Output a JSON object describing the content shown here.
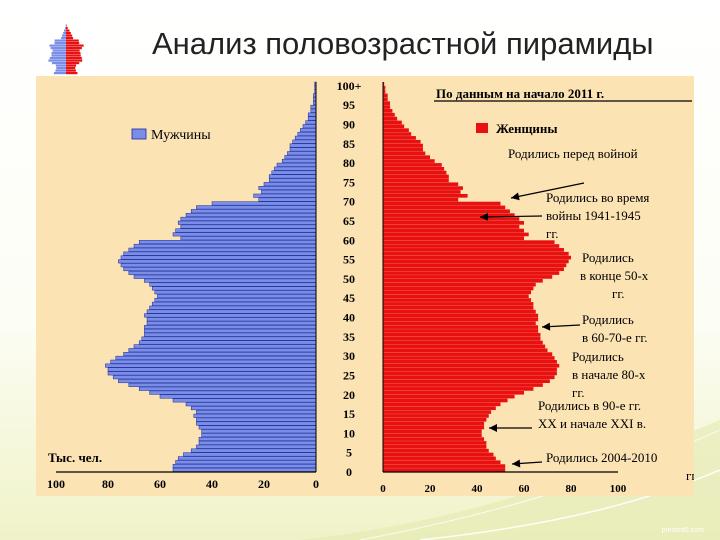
{
  "slide": {
    "title": "Анализ половозрастной пирамиды"
  },
  "colors": {
    "male": "#7a8ee8",
    "male_stroke": "#1a2a9a",
    "female": "#e81010",
    "background": "#fbe3b4"
  },
  "chart_data": {
    "type": "bar",
    "subtitle": "По данным на начало 2011 г.",
    "unit_label": "Тыс. чел.",
    "legend": [
      {
        "name": "Мужчины",
        "color": "#7a8ee8"
      },
      {
        "name": "Женщины",
        "color": "#e81010"
      }
    ],
    "age_ticks": [
      "100+",
      "95",
      "90",
      "85",
      "80",
      "75",
      "70",
      "65",
      "60",
      "55",
      "50",
      "45",
      "40",
      "35",
      "30",
      "25",
      "20",
      "15",
      "10",
      "5",
      "0"
    ],
    "male_axis_ticks": [
      "100",
      "80",
      "60",
      "40",
      "20",
      "0"
    ],
    "female_axis_ticks": [
      "0",
      "20",
      "40",
      "60",
      "80",
      "100"
    ],
    "xlim": [
      0,
      100
    ],
    "age_range": [
      0,
      100
    ],
    "series": [
      {
        "name": "Мужчины",
        "ages_from_0": [
          55,
          55,
          54,
          53,
          51,
          48,
          46,
          45,
          45,
          44,
          44,
          45,
          46,
          46,
          47,
          46,
          48,
          50,
          55,
          60,
          64,
          68,
          72,
          76,
          78,
          80,
          80,
          81,
          79,
          77,
          74,
          72,
          70,
          68,
          67,
          66,
          66,
          66,
          65,
          65,
          66,
          65,
          64,
          63,
          62,
          61,
          62,
          63,
          64,
          66,
          70,
          72,
          74,
          75,
          76,
          75,
          74,
          72,
          70,
          68,
          52,
          55,
          54,
          52,
          53,
          52,
          50,
          48,
          46,
          40,
          22,
          24,
          21,
          22,
          20,
          18,
          18,
          17,
          16,
          15,
          13,
          12,
          11,
          10,
          10,
          9,
          8,
          7,
          6,
          5,
          4,
          3,
          3,
          2,
          2,
          1,
          1,
          1,
          0.5,
          0.5,
          0.5
        ]
      },
      {
        "name": "Женщины",
        "ages_from_0": [
          52,
          52,
          50,
          48,
          47,
          45,
          44,
          44,
          43,
          42,
          42,
          43,
          43,
          44,
          45,
          46,
          48,
          50,
          53,
          56,
          60,
          64,
          68,
          71,
          73,
          74,
          74,
          75,
          74,
          73,
          72,
          70,
          69,
          68,
          67,
          67,
          66,
          66,
          65,
          66,
          66,
          65,
          64,
          64,
          63,
          62,
          63,
          64,
          65,
          68,
          72,
          75,
          77,
          78,
          79,
          80,
          79,
          77,
          75,
          73,
          60,
          62,
          60,
          58,
          60,
          58,
          56,
          54,
          52,
          50,
          32,
          36,
          33,
          34,
          32,
          28,
          28,
          27,
          26,
          25,
          22,
          20,
          18,
          17,
          17,
          16,
          14,
          12,
          11,
          9,
          8,
          6,
          5,
          4,
          3,
          3,
          2,
          2,
          1,
          1,
          0.5
        ]
      }
    ],
    "annotations": [
      {
        "text": [
          "Родились перед войной"
        ],
        "age": 79
      },
      {
        "text": [
          "Родились во время",
          "войны 1941-1945",
          "гг."
        ],
        "age": 67
      },
      {
        "text": [
          "Родились",
          "в конце 50-х",
          "гг."
        ],
        "age": 53
      },
      {
        "text": [
          "Родились",
          "в 60-70-е гг."
        ],
        "age": 38
      },
      {
        "text": [
          "Родились",
          "в начале 80-х",
          "гг."
        ],
        "age": 28
      },
      {
        "text": [
          "Родились в 90-е гг.",
          "XX и начале XXI в."
        ],
        "age": 11
      },
      {
        "text": [
          "Родились 2004-2010",
          "гг."
        ],
        "age": 2
      }
    ]
  }
}
